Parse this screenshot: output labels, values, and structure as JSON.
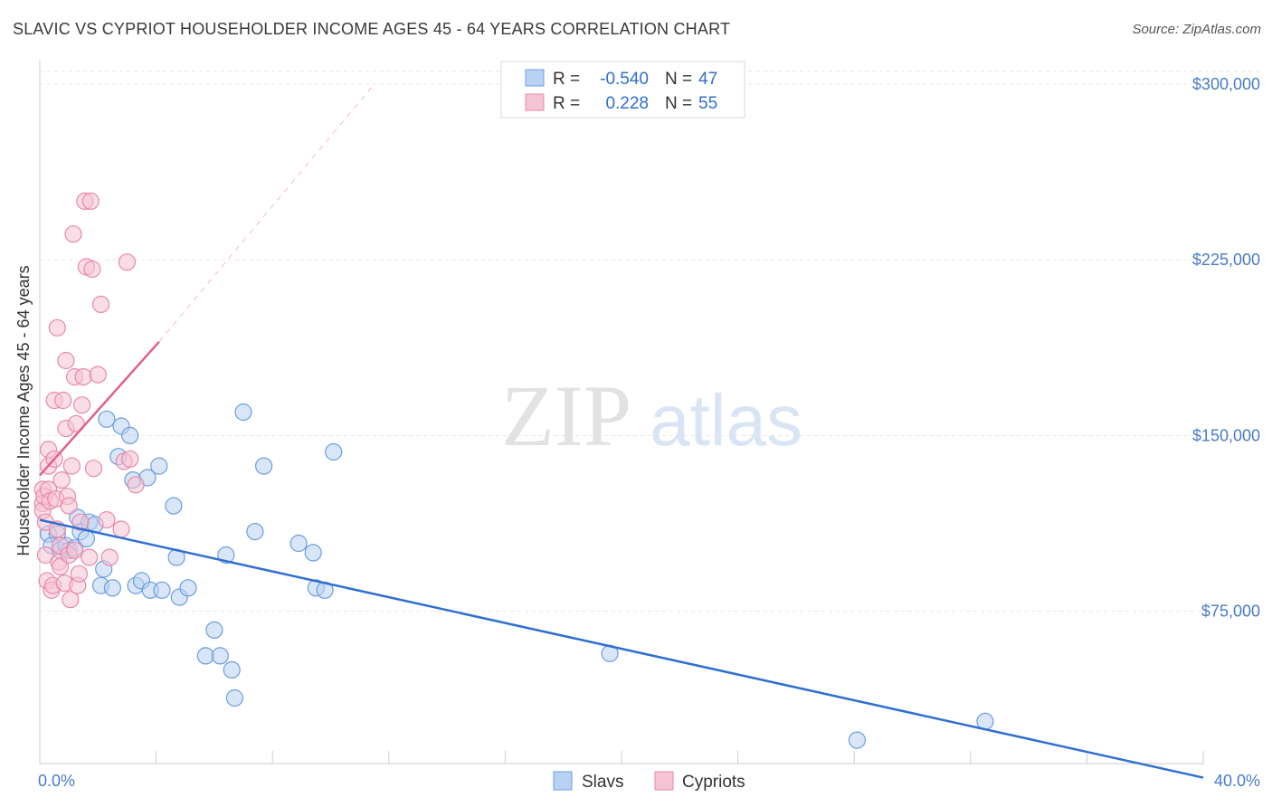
{
  "title": "SLAVIC VS CYPRIOT HOUSEHOLDER INCOME AGES 45 - 64 YEARS CORRELATION CHART",
  "source": "Source: ZipAtlas.com",
  "watermark": {
    "zip": "ZIP",
    "atlas": "atlas"
  },
  "chart_data": {
    "type": "scatter",
    "xlabel": "",
    "ylabel": "Householder Income Ages 45 - 64 years",
    "xlim": [
      0,
      40
    ],
    "ylim": [
      10000,
      310000
    ],
    "x_tick_labels": {
      "min": "0.0%",
      "max": "40.0%"
    },
    "y_ticks": [
      {
        "value": 75000,
        "label": "$75,000"
      },
      {
        "value": 150000,
        "label": "$150,000"
      },
      {
        "value": 225000,
        "label": "$225,000"
      },
      {
        "value": 300000,
        "label": "$300,000"
      }
    ],
    "stats": [
      {
        "r_label": "R =",
        "r": "-0.540",
        "n_label": "N =",
        "n": "47"
      },
      {
        "r_label": "R =",
        "r": "0.228",
        "n_label": "N =",
        "n": "55"
      }
    ],
    "series": [
      {
        "name": "Slavs",
        "color": "#6b9de0",
        "fill": "#b9d2f3",
        "trend": {
          "x0": 0,
          "y0": 114000,
          "x1": 40,
          "y1": 4000,
          "color": "#2f6fd0"
        },
        "points": [
          [
            0.3,
            108000
          ],
          [
            0.6,
            108000
          ],
          [
            0.4,
            103000
          ],
          [
            0.7,
            101000
          ],
          [
            0.9,
            103000
          ],
          [
            1.0,
            101000
          ],
          [
            1.2,
            102000
          ],
          [
            1.3,
            115000
          ],
          [
            1.4,
            109000
          ],
          [
            1.6,
            106000
          ],
          [
            1.7,
            113000
          ],
          [
            1.9,
            112000
          ],
          [
            2.1,
            86000
          ],
          [
            2.2,
            93000
          ],
          [
            2.5,
            85000
          ],
          [
            2.3,
            157000
          ],
          [
            2.7,
            141000
          ],
          [
            2.8,
            154000
          ],
          [
            3.1,
            150000
          ],
          [
            3.2,
            131000
          ],
          [
            3.3,
            86000
          ],
          [
            3.5,
            88000
          ],
          [
            3.7,
            132000
          ],
          [
            3.8,
            84000
          ],
          [
            4.1,
            137000
          ],
          [
            4.2,
            84000
          ],
          [
            4.6,
            120000
          ],
          [
            4.7,
            98000
          ],
          [
            4.8,
            81000
          ],
          [
            5.1,
            85000
          ],
          [
            5.7,
            56000
          ],
          [
            6.0,
            67000
          ],
          [
            6.2,
            56000
          ],
          [
            6.4,
            99000
          ],
          [
            6.6,
            50000
          ],
          [
            6.7,
            38000
          ],
          [
            7.0,
            160000
          ],
          [
            7.4,
            109000
          ],
          [
            7.7,
            137000
          ],
          [
            8.9,
            104000
          ],
          [
            9.4,
            100000
          ],
          [
            9.5,
            85000
          ],
          [
            9.8,
            84000
          ],
          [
            10.1,
            143000
          ],
          [
            19.6,
            57000
          ],
          [
            28.1,
            20000
          ],
          [
            32.5,
            28000
          ]
        ]
      },
      {
        "name": "Cypriots",
        "color": "#e889a8",
        "fill": "#f6c3d4",
        "trend": {
          "x0": 0,
          "y0": 133000,
          "x1": 4.1,
          "y1": 190000,
          "color": "#e0608e",
          "dash_to": {
            "x": 11.5,
            "y": 300000
          }
        },
        "points": [
          [
            0.1,
            127000
          ],
          [
            0.1,
            121000
          ],
          [
            0.1,
            118000
          ],
          [
            0.15,
            124000
          ],
          [
            0.2,
            113000
          ],
          [
            0.2,
            99000
          ],
          [
            0.25,
            88000
          ],
          [
            0.3,
            144000
          ],
          [
            0.3,
            137000
          ],
          [
            0.3,
            127000
          ],
          [
            0.35,
            122000
          ],
          [
            0.4,
            84000
          ],
          [
            0.45,
            86000
          ],
          [
            0.5,
            165000
          ],
          [
            0.5,
            140000
          ],
          [
            0.55,
            123000
          ],
          [
            0.6,
            196000
          ],
          [
            0.6,
            110000
          ],
          [
            0.65,
            96000
          ],
          [
            0.7,
            103000
          ],
          [
            0.7,
            94000
          ],
          [
            0.75,
            131000
          ],
          [
            0.8,
            165000
          ],
          [
            0.85,
            87000
          ],
          [
            0.9,
            153000
          ],
          [
            0.95,
            124000
          ],
          [
            1.0,
            120000
          ],
          [
            1.0,
            99000
          ],
          [
            1.05,
            80000
          ],
          [
            1.1,
            137000
          ],
          [
            1.15,
            236000
          ],
          [
            1.2,
            175000
          ],
          [
            1.25,
            155000
          ],
          [
            1.3,
            86000
          ],
          [
            1.35,
            91000
          ],
          [
            1.4,
            113000
          ],
          [
            1.45,
            163000
          ],
          [
            1.5,
            175000
          ],
          [
            1.55,
            250000
          ],
          [
            1.6,
            222000
          ],
          [
            1.7,
            98000
          ],
          [
            1.75,
            250000
          ],
          [
            1.8,
            221000
          ],
          [
            1.85,
            136000
          ],
          [
            2.0,
            176000
          ],
          [
            2.1,
            206000
          ],
          [
            2.3,
            114000
          ],
          [
            2.4,
            98000
          ],
          [
            2.8,
            110000
          ],
          [
            2.9,
            139000
          ],
          [
            3.0,
            224000
          ],
          [
            3.1,
            140000
          ],
          [
            3.3,
            129000
          ],
          [
            0.9,
            182000
          ],
          [
            1.2,
            101000
          ]
        ]
      }
    ]
  },
  "legend": [
    {
      "label": "Slavs"
    },
    {
      "label": "Cypriots"
    }
  ]
}
